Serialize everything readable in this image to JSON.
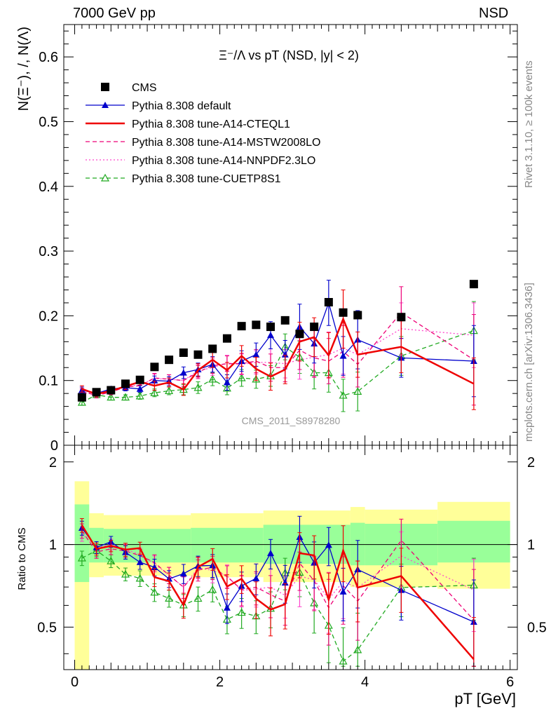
{
  "header": {
    "left": "7000 GeV pp",
    "right": "NSD",
    "rivet": "Rivet 3.1.10, ≥ 100k events",
    "mcplots": "mcplots.cern.ch [arXiv:1306.3436]"
  },
  "chart_data": [
    {
      "type": "scatter",
      "panel": "main",
      "title": "Ξ⁻/Λ  vs pT (NSD, |y| < 2)",
      "ylabel": "N(Ξ⁻), /, N(Λ)",
      "xlabel": "pT [GeV]",
      "watermark": "CMS_2011_S8978280",
      "xlim": [
        -0.15,
        6.1
      ],
      "ylim": [
        0,
        0.65
      ],
      "yticks": [
        "0",
        "0.1",
        "0.2",
        "0.3",
        "0.4",
        "0.5",
        "0.6"
      ],
      "xticks": [
        "0",
        "2",
        "4",
        "6"
      ],
      "legend_position": "top-left",
      "x": [
        0.1,
        0.3,
        0.5,
        0.7,
        0.9,
        1.1,
        1.3,
        1.5,
        1.7,
        1.9,
        2.1,
        2.3,
        2.5,
        2.7,
        2.9,
        3.1,
        3.3,
        3.5,
        3.7,
        3.9,
        4.5,
        5.5
      ],
      "series": [
        {
          "name": "CMS",
          "color": "#000000",
          "style": "marker",
          "marker": "square",
          "values": [
            0.074,
            0.082,
            0.085,
            0.095,
            0.101,
            0.121,
            0.132,
            0.143,
            0.14,
            0.149,
            0.165,
            0.184,
            0.186,
            0.183,
            0.193,
            0.172,
            0.183,
            0.221,
            0.205,
            0.201,
            0.198,
            0.249
          ],
          "errors": [
            0.003,
            0.003,
            0.003,
            0.003,
            0.003,
            0.004,
            0.004,
            0.004,
            0.004,
            0.005,
            0.005,
            0.005,
            0.005,
            0.006,
            0.006,
            0.006,
            0.007,
            0.007,
            0.008,
            0.008,
            0.007,
            0.008
          ]
        },
        {
          "name": "Pythia 8.308 default",
          "color": "#0000cc",
          "style": "solid",
          "marker": "filled-triangle",
          "values": [
            0.085,
            0.08,
            0.087,
            0.089,
            0.087,
            0.1,
            0.099,
            0.112,
            0.117,
            0.125,
            0.097,
            0.13,
            0.14,
            0.17,
            0.14,
            0.183,
            0.157,
            0.22,
            0.138,
            0.163,
            0.135,
            0.13
          ],
          "errors": [
            0.005,
            0.004,
            0.004,
            0.005,
            0.005,
            0.007,
            0.007,
            0.009,
            0.01,
            0.012,
            0.012,
            0.016,
            0.018,
            0.021,
            0.022,
            0.035,
            0.03,
            0.035,
            0.03,
            0.045,
            0.03,
            0.055
          ]
        },
        {
          "name": "Pythia 8.308 tune-A14-CTEQL1",
          "color": "#ee0000",
          "style": "thick",
          "marker": "none",
          "values": [
            0.087,
            0.079,
            0.084,
            0.091,
            0.098,
            0.092,
            0.097,
            0.086,
            0.116,
            0.132,
            0.116,
            0.138,
            0.118,
            0.106,
            0.117,
            0.16,
            0.167,
            0.139,
            0.195,
            0.14,
            0.152,
            0.095
          ],
          "errors": [
            0.005,
            0.004,
            0.004,
            0.005,
            0.005,
            0.007,
            0.007,
            0.009,
            0.01,
            0.012,
            0.012,
            0.016,
            0.018,
            0.021,
            0.022,
            0.03,
            0.03,
            0.035,
            0.045,
            0.035,
            0.04,
            0.04
          ]
        },
        {
          "name": "Pythia 8.308 tune-A14-MSTW2008LO",
          "color": "#ee0077",
          "style": "dashed",
          "marker": "none",
          "values": [
            0.083,
            0.077,
            0.082,
            0.09,
            0.092,
            0.104,
            0.102,
            0.1,
            0.113,
            0.123,
            0.126,
            0.126,
            0.13,
            0.12,
            0.12,
            0.147,
            0.135,
            0.13,
            0.145,
            0.125,
            0.205,
            0.132
          ],
          "errors": [
            0.005,
            0.004,
            0.004,
            0.005,
            0.005,
            0.007,
            0.007,
            0.009,
            0.01,
            0.012,
            0.012,
            0.016,
            0.018,
            0.021,
            0.022,
            0.03,
            0.03,
            0.035,
            0.04,
            0.035,
            0.04,
            0.07
          ]
        },
        {
          "name": "Pythia 8.308 tune-A14-NNPDF2.3LO",
          "color": "#ff44cc",
          "style": "dotted",
          "marker": "none",
          "values": [
            0.081,
            0.08,
            0.085,
            0.091,
            0.093,
            0.103,
            0.102,
            0.1,
            0.115,
            0.12,
            0.127,
            0.125,
            0.128,
            0.128,
            0.126,
            0.132,
            0.136,
            0.14,
            0.15,
            0.14,
            0.18,
            0.17
          ],
          "errors": [
            0.005,
            0.004,
            0.004,
            0.005,
            0.005,
            0.007,
            0.007,
            0.009,
            0.01,
            0.012,
            0.012,
            0.016,
            0.018,
            0.021,
            0.022,
            0.03,
            0.03,
            0.035,
            0.04,
            0.035,
            0.04,
            0.05
          ]
        },
        {
          "name": "Pythia 8.308 tune-CUETP8S1",
          "color": "#22aa22",
          "style": "dashed",
          "marker": "open-triangle",
          "values": [
            0.066,
            0.078,
            0.074,
            0.074,
            0.076,
            0.081,
            0.084,
            0.086,
            0.089,
            0.102,
            0.088,
            0.104,
            0.102,
            0.107,
            0.152,
            0.136,
            0.112,
            0.112,
            0.077,
            0.083,
            0.138,
            0.177
          ],
          "errors": [
            0.004,
            0.004,
            0.004,
            0.004,
            0.005,
            0.006,
            0.006,
            0.008,
            0.009,
            0.01,
            0.01,
            0.013,
            0.014,
            0.016,
            0.02,
            0.025,
            0.025,
            0.03,
            0.025,
            0.03,
            0.03,
            0.045
          ]
        }
      ]
    },
    {
      "type": "scatter",
      "panel": "ratio",
      "ylabel": "Ratio to CMS",
      "xlim": [
        -0.15,
        6.1
      ],
      "ylim": [
        0.35,
        2.3
      ],
      "yticks": [
        "0.5",
        "1",
        "2"
      ],
      "reference_line": 1,
      "bands": [
        {
          "x0": 0.0,
          "x1": 0.2,
          "green": [
            0.73,
            1.4
          ],
          "yellow": [
            0.3,
            1.7
          ]
        },
        {
          "x0": 0.2,
          "x1": 0.4,
          "green": [
            0.86,
            1.15
          ],
          "yellow": [
            0.76,
            1.3
          ]
        },
        {
          "x0": 0.4,
          "x1": 1.6,
          "green": [
            0.86,
            1.14
          ],
          "yellow": [
            0.77,
            1.28
          ]
        },
        {
          "x0": 1.6,
          "x1": 2.6,
          "green": [
            0.86,
            1.15
          ],
          "yellow": [
            0.76,
            1.3
          ]
        },
        {
          "x0": 2.6,
          "x1": 3.8,
          "green": [
            0.85,
            1.18
          ],
          "yellow": [
            0.73,
            1.33
          ]
        },
        {
          "x0": 3.8,
          "x1": 4.0,
          "green": [
            0.84,
            1.2
          ],
          "yellow": [
            0.7,
            1.37
          ]
        },
        {
          "x0": 4.0,
          "x1": 5.0,
          "green": [
            0.84,
            1.19
          ],
          "yellow": [
            0.7,
            1.34
          ]
        },
        {
          "x0": 5.0,
          "x1": 6.0,
          "green": [
            0.86,
            1.22
          ],
          "yellow": [
            0.69,
            1.43
          ]
        }
      ]
    }
  ]
}
